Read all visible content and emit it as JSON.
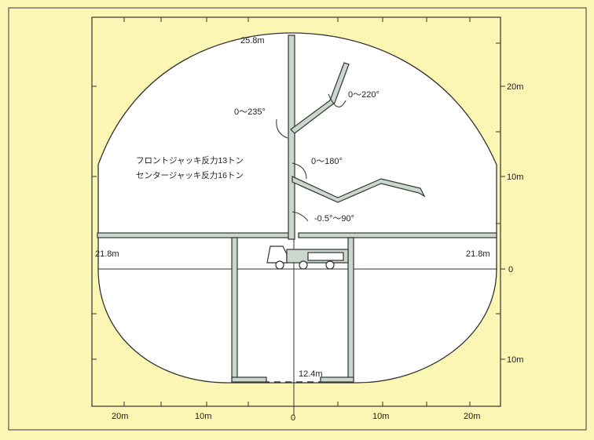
{
  "colors": {
    "background": "#fcf6b4",
    "reach_area": "#ffffff",
    "boom": "#c9d7cc",
    "outline": "#333333"
  },
  "labels": {
    "top_height": "25.8m",
    "left_span": "21.8m",
    "right_span": "21.8m",
    "bottom_span": "12.4m",
    "angle_235": "0～235°",
    "angle_220": "0～220°",
    "angle_180": "0～180°",
    "angle_base": "-0.5°～90°",
    "front_jack": "フロントジャッキ反力13トン",
    "center_jack": "センタージャッキ反力16トン"
  },
  "right_ticks": [
    "20m",
    "10m",
    "0",
    "10m"
  ],
  "bottom_ticks": [
    "20m",
    "10m",
    "0",
    "10m",
    "20m"
  ]
}
